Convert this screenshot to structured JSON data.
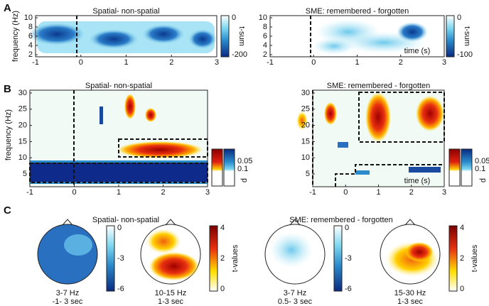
{
  "panel_labels": [
    "A",
    "B",
    "C"
  ],
  "panel_a": {
    "ylabel": "frequency (Hz)",
    "left": {
      "title": "Spatial- non-spatial",
      "yticks": [
        10,
        8,
        6,
        4,
        2
      ],
      "xticks": [
        -1,
        0,
        1,
        2,
        3
      ],
      "colorbar": {
        "ticks": [
          0,
          -200
        ],
        "label": "t-sum"
      }
    },
    "right": {
      "title": "SME: remembered - forgotten",
      "yticks": [
        10,
        8,
        6,
        4,
        2
      ],
      "xticks": [
        -1,
        0,
        1,
        2,
        3
      ],
      "xlabel": "time (s)",
      "colorbar": {
        "ticks": [
          0,
          -100
        ],
        "label": "t-sum"
      }
    }
  },
  "panel_b": {
    "ylabel": "frequency (Hz)",
    "left": {
      "title": "Spatial- non-spatial",
      "yticks": [
        30,
        25,
        20,
        15,
        10,
        5
      ],
      "xticks": [
        -1,
        0,
        1,
        2,
        3
      ],
      "colorbar": {
        "ticks": [
          0.05,
          0.1
        ],
        "label": "p"
      }
    },
    "right": {
      "title": "SME: remembered - forgotten",
      "yticks": [
        30,
        25,
        20,
        15,
        10,
        5
      ],
      "xticks": [
        -1,
        0,
        1,
        2,
        3
      ],
      "xlabel": "time (s)",
      "colorbar": {
        "ticks": [
          0.05,
          0.1
        ],
        "label": "p"
      }
    }
  },
  "panel_c": {
    "left_title": "Spatial- non-spatial",
    "right_title": "SME: remembered - forgotten",
    "maps": [
      {
        "caption": [
          "3-7 Hz",
          "-1- 3 sec"
        ],
        "colorbar": {
          "ticks": [
            0,
            -3,
            -6
          ]
        }
      },
      {
        "caption": [
          "10-15 Hz",
          "1-3 sec"
        ],
        "colorbar": {
          "ticks": [
            4,
            2,
            0
          ],
          "label": "t-values"
        }
      },
      {
        "caption": [
          "3-7 Hz",
          "0.5- 3 sec"
        ],
        "colorbar": {
          "ticks": [
            0,
            -3,
            -6
          ]
        }
      },
      {
        "caption": [
          "15-30 Hz",
          "1-3 sec"
        ],
        "colorbar": {
          "ticks": [
            4,
            2,
            0
          ],
          "label": "t-values"
        }
      }
    ]
  }
}
